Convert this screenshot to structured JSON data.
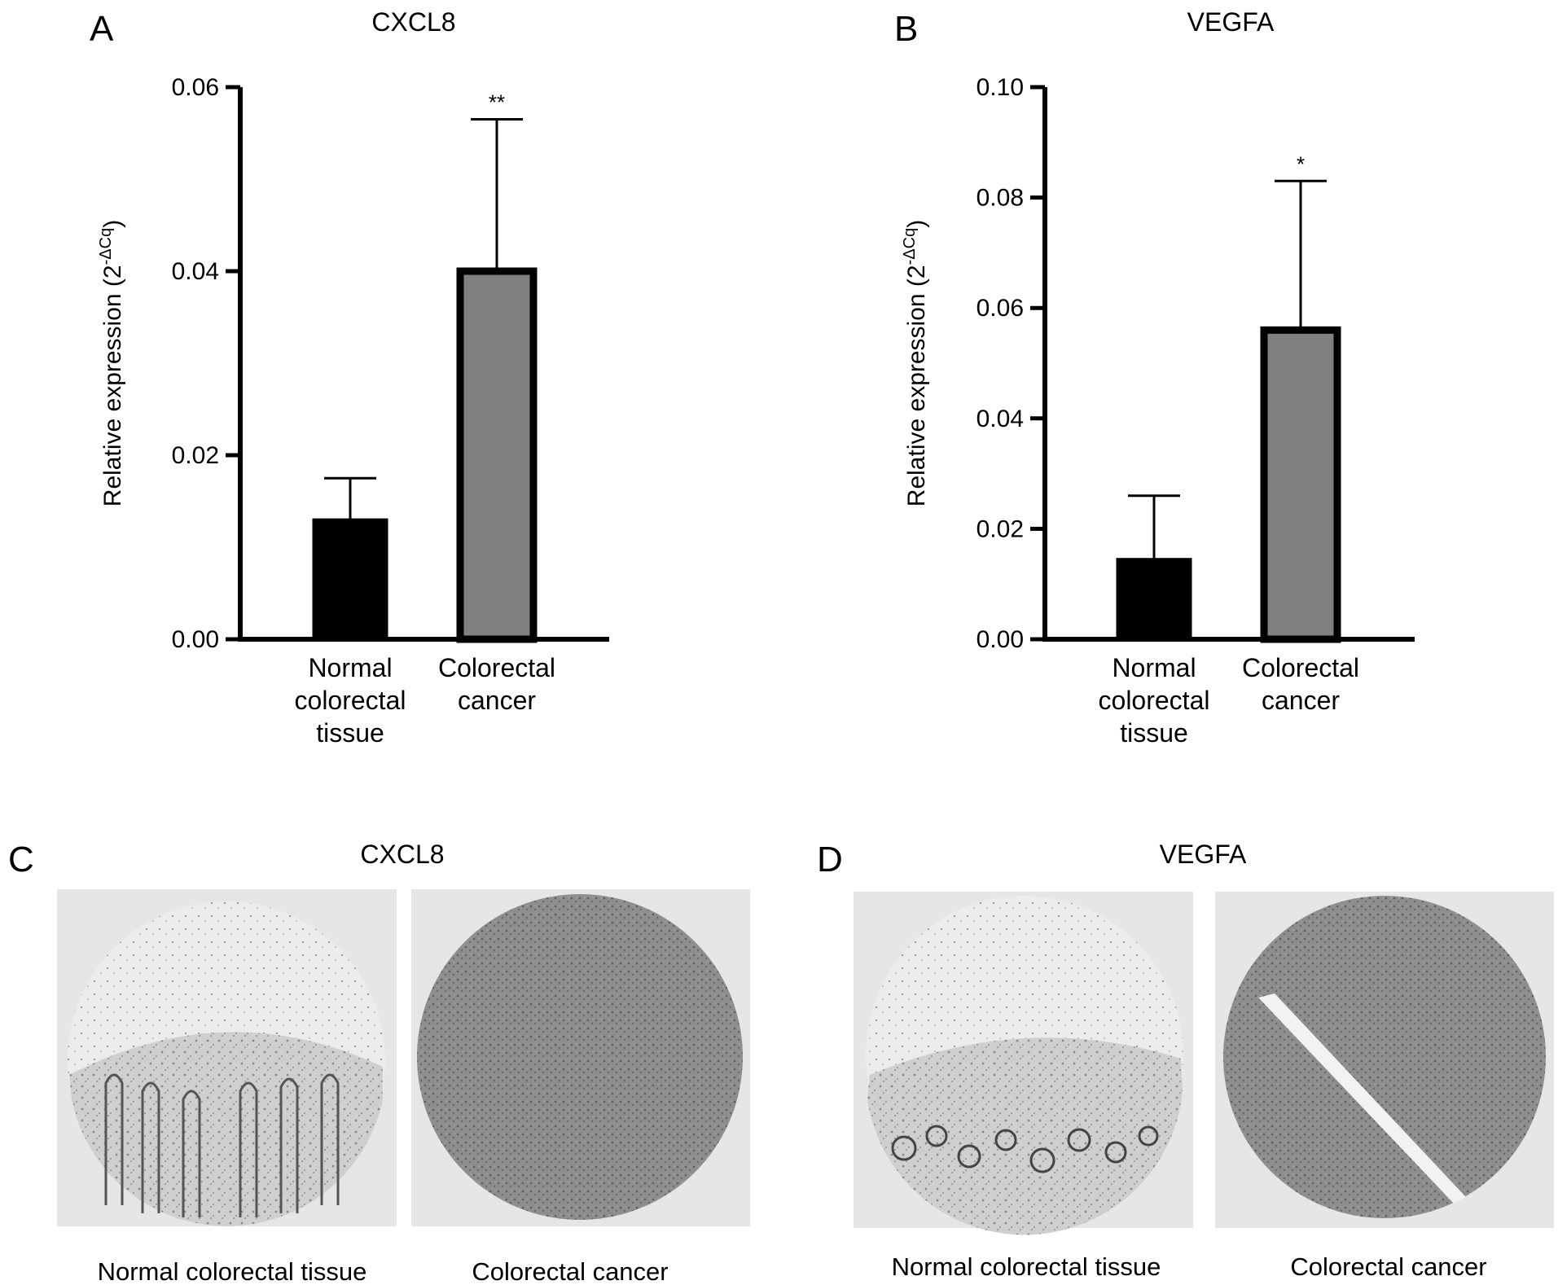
{
  "panels": {
    "a": {
      "letter": "A"
    },
    "b": {
      "letter": "B"
    },
    "c": {
      "letter": "C",
      "title": "CXCL8",
      "images": [
        {
          "caption": "Normal colorectal tissue",
          "tissue": "normal"
        },
        {
          "caption": "Colorectal cancer",
          "tissue": "cancer"
        }
      ]
    },
    "d": {
      "letter": "D",
      "title": "VEGFA",
      "images": [
        {
          "caption": "Normal colorectal tissue",
          "tissue": "normal"
        },
        {
          "caption": "Colorectal cancer",
          "tissue": "cancer"
        }
      ]
    }
  },
  "chart_data": [
    {
      "type": "bar",
      "title": "CXCL8",
      "ylabel": "Relative expression (2",
      "ylabel_superscript": "-ΔCq",
      "ylabel_close": ")",
      "ylim": [
        0,
        0.06
      ],
      "yticks": [
        "0.00",
        "0.02",
        "0.04",
        "0.06"
      ],
      "categories": [
        [
          "Normal",
          "colorectal",
          "tissue"
        ],
        [
          "Colorectal",
          "cancer"
        ]
      ],
      "values": [
        0.013,
        0.04
      ],
      "errors": [
        0.0045,
        0.0165
      ],
      "colors": [
        "#000000",
        "#808080"
      ],
      "significance": [
        "",
        "**"
      ]
    },
    {
      "type": "bar",
      "title": "VEGFA",
      "ylabel": "Relative expression (2",
      "ylabel_superscript": "-ΔCq",
      "ylabel_close": ")",
      "ylim": [
        0,
        0.1
      ],
      "yticks": [
        "0.00",
        "0.02",
        "0.04",
        "0.06",
        "0.08",
        "0.10"
      ],
      "categories": [
        [
          "Normal",
          "colorectal",
          "tissue"
        ],
        [
          "Colorectal",
          "cancer"
        ]
      ],
      "values": [
        0.0145,
        0.056
      ],
      "errors": [
        0.0115,
        0.027
      ],
      "colors": [
        "#000000",
        "#808080"
      ],
      "significance": [
        "",
        "*"
      ]
    }
  ]
}
